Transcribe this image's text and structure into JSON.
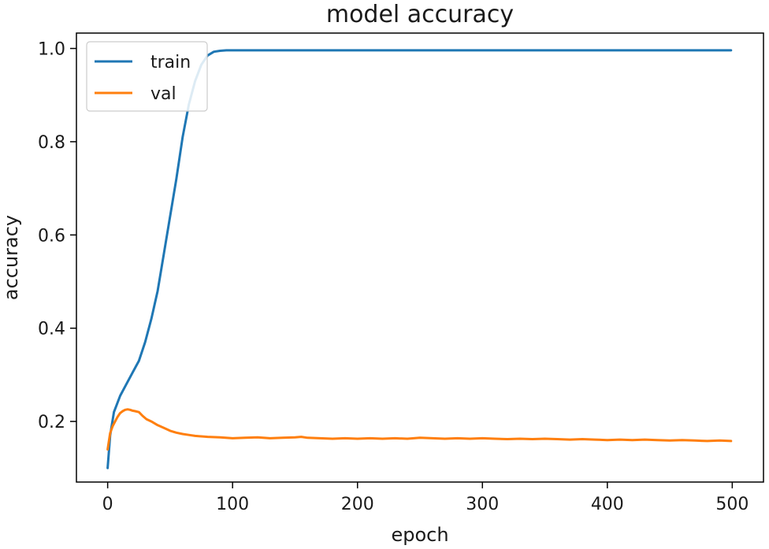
{
  "chart_data": {
    "type": "line",
    "title": "model accuracy",
    "xlabel": "epoch",
    "ylabel": "accuracy",
    "xlim": [
      -25,
      525
    ],
    "ylim": [
      0.07,
      1.033
    ],
    "x_ticks": [
      0,
      100,
      200,
      300,
      400,
      500
    ],
    "x_tick_labels": [
      "0",
      "100",
      "200",
      "300",
      "400",
      "500"
    ],
    "y_ticks": [
      0.2,
      0.4,
      0.6,
      0.8,
      1.0
    ],
    "y_tick_labels": [
      "0.2",
      "0.4",
      "0.6",
      "0.8",
      "1.0"
    ],
    "grid": false,
    "legend_position": "upper left",
    "series": [
      {
        "name": "train",
        "color": "#1f77b4",
        "x": [
          0,
          2,
          5,
          10,
          15,
          20,
          25,
          30,
          35,
          40,
          45,
          50,
          55,
          60,
          65,
          70,
          75,
          80,
          85,
          90,
          95,
          100,
          110,
          120,
          150,
          200,
          250,
          300,
          350,
          400,
          450,
          499
        ],
        "y": [
          0.1,
          0.17,
          0.22,
          0.255,
          0.28,
          0.305,
          0.33,
          0.37,
          0.42,
          0.48,
          0.56,
          0.64,
          0.72,
          0.81,
          0.88,
          0.93,
          0.965,
          0.985,
          0.993,
          0.995,
          0.996,
          0.996,
          0.996,
          0.996,
          0.996,
          0.996,
          0.996,
          0.996,
          0.996,
          0.996,
          0.996,
          0.996
        ]
      },
      {
        "name": "val",
        "color": "#ff7f0e",
        "x": [
          0,
          2,
          4,
          6,
          8,
          10,
          12,
          14,
          16,
          18,
          20,
          22,
          25,
          28,
          31,
          35,
          40,
          45,
          50,
          55,
          60,
          65,
          70,
          75,
          80,
          90,
          100,
          110,
          120,
          130,
          140,
          150,
          155,
          160,
          170,
          180,
          190,
          200,
          210,
          220,
          230,
          240,
          250,
          260,
          270,
          280,
          290,
          300,
          310,
          320,
          330,
          340,
          350,
          360,
          370,
          380,
          390,
          400,
          410,
          420,
          430,
          440,
          450,
          460,
          470,
          480,
          490,
          499
        ],
        "y": [
          0.14,
          0.175,
          0.19,
          0.2,
          0.21,
          0.218,
          0.222,
          0.225,
          0.226,
          0.225,
          0.223,
          0.222,
          0.22,
          0.212,
          0.205,
          0.2,
          0.192,
          0.186,
          0.18,
          0.176,
          0.173,
          0.171,
          0.169,
          0.168,
          0.167,
          0.166,
          0.164,
          0.165,
          0.166,
          0.164,
          0.165,
          0.166,
          0.167,
          0.165,
          0.164,
          0.163,
          0.164,
          0.163,
          0.164,
          0.163,
          0.164,
          0.163,
          0.165,
          0.164,
          0.163,
          0.164,
          0.163,
          0.164,
          0.163,
          0.162,
          0.163,
          0.162,
          0.163,
          0.162,
          0.161,
          0.162,
          0.161,
          0.16,
          0.161,
          0.16,
          0.161,
          0.16,
          0.159,
          0.16,
          0.159,
          0.158,
          0.159,
          0.158
        ]
      }
    ]
  }
}
